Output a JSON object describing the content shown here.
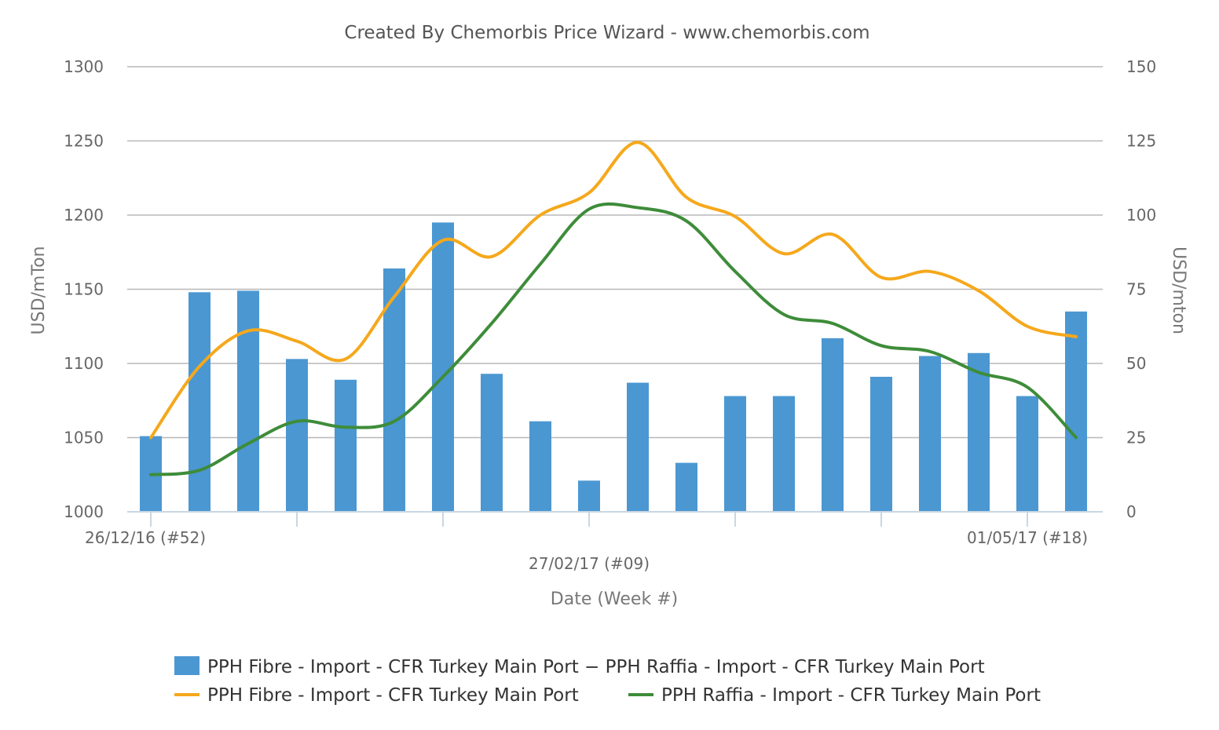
{
  "chart_data": {
    "type": "bar",
    "title": "Created By Chemorbis Price Wizard - www.chemorbis.com",
    "xlabel": "Date (Week #)",
    "ylabel_left": "USD/mTon",
    "ylabel_right": "USD/mton",
    "ylim_left": [
      1000,
      1300
    ],
    "ylim_right": [
      0,
      150
    ],
    "yticks_left": [
      "1000",
      "1050",
      "1100",
      "1150",
      "1200",
      "1250",
      "1300"
    ],
    "yticks_right": [
      "0",
      "25",
      "50",
      "75",
      "100",
      "125",
      "150"
    ],
    "x_labels": [
      {
        "text": "26/12/16 (#52)",
        "index": 0,
        "row": 1
      },
      {
        "text": "27/02/17 (#09)",
        "index": 9,
        "row": 2
      },
      {
        "text": "01/05/17 (#18)",
        "index": 18,
        "row": 1
      }
    ],
    "grid": true,
    "legend_position": "bottom",
    "series": [
      {
        "name": "PPH Fibre - Import - CFR Turkey Main Port − PPH Raffia - Import - CFR Turkey Main Port",
        "type": "bar",
        "axis": "right",
        "color": "#4b97d2",
        "values": [
          25.5,
          74,
          74.5,
          51.5,
          44.5,
          82,
          97.5,
          46.5,
          30.5,
          10.5,
          43.5,
          16.5,
          39,
          39,
          58.5,
          45.5,
          52.5,
          53.5,
          39,
          67.5
        ]
      },
      {
        "name": "PPH Fibre - Import - CFR Turkey Main Port",
        "type": "line",
        "axis": "left",
        "color": "#f5a81c",
        "values": [
          1050,
          1098,
          1122,
          1115,
          1103,
          1145,
          1183,
          1172,
          1200,
          1215,
          1249,
          1212,
          1199,
          1174,
          1187,
          1158,
          1162,
          1149,
          1125,
          1118
        ]
      },
      {
        "name": "PPH Raffia - Import - CFR Turkey Main Port",
        "type": "line",
        "axis": "left",
        "color": "#3e8c3a",
        "values": [
          1025,
          1028,
          1046,
          1061,
          1057,
          1061,
          1091,
          1127,
          1167,
          1204,
          1205,
          1196,
          1162,
          1133,
          1127,
          1112,
          1108,
          1094,
          1084,
          1050
        ]
      }
    ]
  }
}
